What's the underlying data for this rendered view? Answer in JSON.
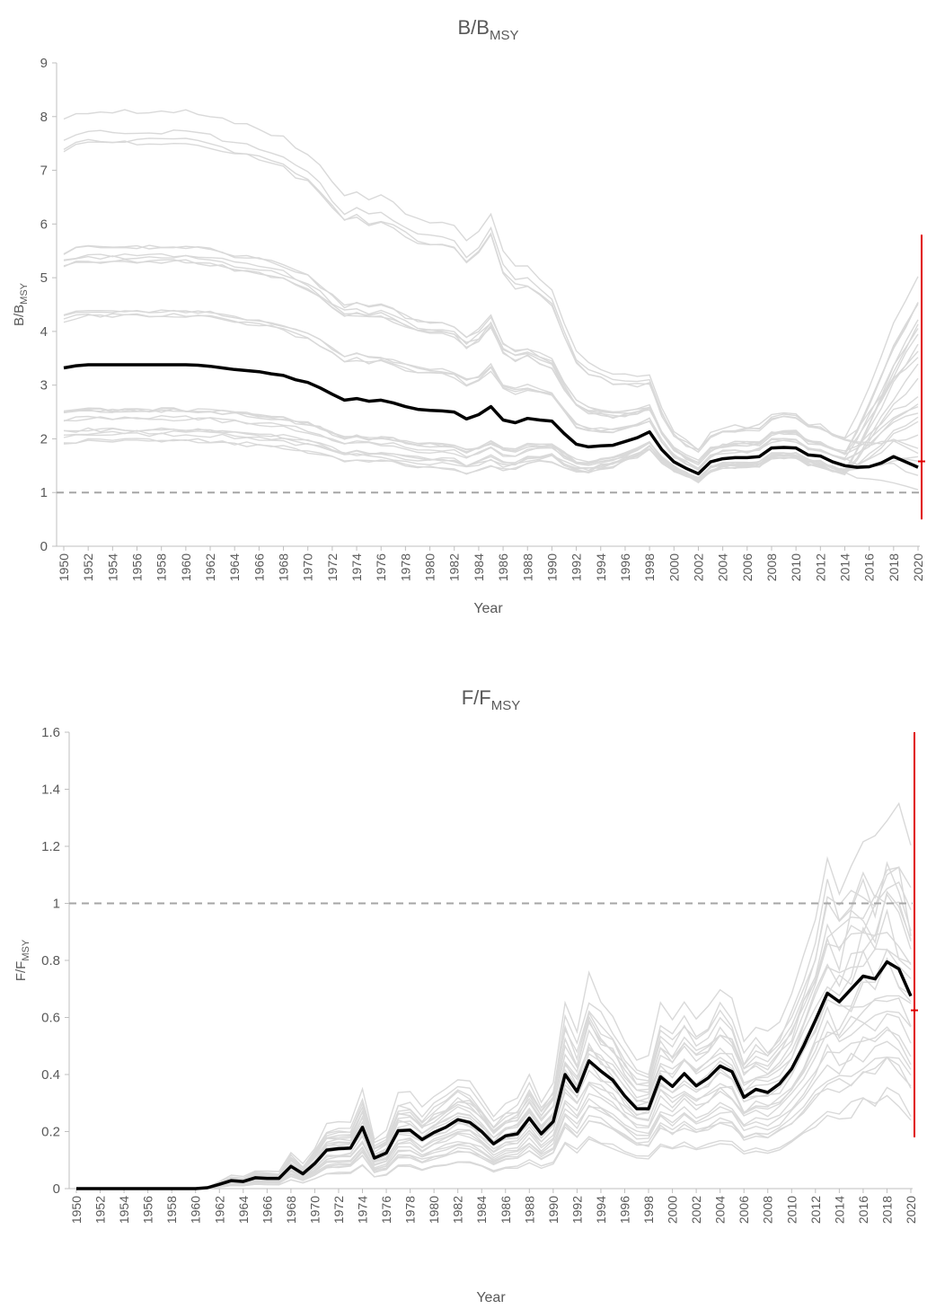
{
  "chart_data": [
    {
      "type": "line",
      "title": "B/B",
      "title_sub": "MSY",
      "ylabel": "B/B",
      "ylabel_sub": "MSY",
      "xlabel": "Year",
      "ylim": [
        0,
        9
      ],
      "yticks": [
        0,
        1,
        2,
        3,
        4,
        5,
        6,
        7,
        8,
        9
      ],
      "xlim": [
        1950,
        2020
      ],
      "xticks": [
        1950,
        1952,
        1954,
        1956,
        1958,
        1960,
        1962,
        1964,
        1966,
        1968,
        1970,
        1972,
        1974,
        1976,
        1978,
        1980,
        1982,
        1984,
        1986,
        1988,
        1990,
        1992,
        1994,
        1996,
        1998,
        2000,
        2002,
        2004,
        2006,
        2008,
        2010,
        2012,
        2014,
        2016,
        2018,
        2020
      ],
      "reference_line": {
        "y": 1,
        "style": "dashed",
        "color": "#a6a6a6"
      },
      "main_series": {
        "color": "#000000",
        "x": [
          1950,
          1951,
          1952,
          1953,
          1954,
          1955,
          1956,
          1957,
          1958,
          1959,
          1960,
          1961,
          1962,
          1963,
          1964,
          1965,
          1966,
          1967,
          1968,
          1969,
          1970,
          1971,
          1972,
          1973,
          1974,
          1975,
          1976,
          1977,
          1978,
          1979,
          1980,
          1981,
          1982,
          1983,
          1984,
          1985,
          1986,
          1987,
          1988,
          1989,
          1990,
          1991,
          1992,
          1993,
          1994,
          1995,
          1996,
          1997,
          1998,
          1999,
          2000,
          2001,
          2002,
          2003,
          2004,
          2005,
          2006,
          2007,
          2008,
          2009,
          2010,
          2011,
          2012,
          2013,
          2014,
          2015,
          2016,
          2017,
          2018,
          2019,
          2020
        ],
        "y": [
          3.32,
          3.36,
          3.38,
          3.38,
          3.38,
          3.38,
          3.38,
          3.38,
          3.38,
          3.38,
          3.38,
          3.37,
          3.35,
          3.32,
          3.29,
          3.27,
          3.25,
          3.21,
          3.18,
          3.1,
          3.05,
          2.95,
          2.83,
          2.72,
          2.75,
          2.7,
          2.72,
          2.67,
          2.6,
          2.55,
          2.53,
          2.52,
          2.5,
          2.37,
          2.45,
          2.6,
          2.35,
          2.3,
          2.38,
          2.35,
          2.33,
          2.1,
          1.9,
          1.85,
          1.87,
          1.88,
          1.95,
          2.02,
          2.13,
          1.8,
          1.57,
          1.45,
          1.35,
          1.57,
          1.63,
          1.65,
          1.65,
          1.67,
          1.83,
          1.84,
          1.83,
          1.7,
          1.68,
          1.57,
          1.5,
          1.47,
          1.48,
          1.55,
          1.67,
          1.57,
          1.47
        ]
      },
      "uncertainty": {
        "x": 2020,
        "low": 0.5,
        "high": 5.8,
        "point": 1.58,
        "color": "#e00000"
      }
    },
    {
      "type": "line",
      "title": "F/F",
      "title_sub": "MSY",
      "ylabel": "F/F",
      "ylabel_sub": "MSY",
      "xlabel": "Year",
      "ylim": [
        0,
        1.6
      ],
      "yticks": [
        0,
        0.2,
        0.4,
        0.6,
        0.8,
        1,
        1.2,
        1.4,
        1.6
      ],
      "ytick_labels": [
        "0",
        "0.2",
        "0.4",
        "0.6",
        "0.8",
        "1",
        "1.2",
        "1.4",
        "1.6"
      ],
      "xlim": [
        1950,
        2020
      ],
      "xticks": [
        1950,
        1952,
        1954,
        1956,
        1958,
        1960,
        1962,
        1964,
        1966,
        1968,
        1970,
        1972,
        1974,
        1976,
        1978,
        1980,
        1982,
        1984,
        1986,
        1988,
        1990,
        1992,
        1994,
        1996,
        1998,
        2000,
        2002,
        2004,
        2006,
        2008,
        2010,
        2012,
        2014,
        2016,
        2018,
        2020
      ],
      "reference_line": {
        "y": 1,
        "style": "dashed",
        "color": "#a6a6a6"
      },
      "main_series": {
        "color": "#000000",
        "x": [
          1950,
          1951,
          1952,
          1953,
          1954,
          1955,
          1956,
          1957,
          1958,
          1959,
          1960,
          1961,
          1962,
          1963,
          1964,
          1965,
          1966,
          1967,
          1968,
          1969,
          1970,
          1971,
          1972,
          1973,
          1974,
          1975,
          1976,
          1977,
          1978,
          1979,
          1980,
          1981,
          1982,
          1983,
          1984,
          1985,
          1986,
          1987,
          1988,
          1989,
          1990,
          1991,
          1992,
          1993,
          1994,
          1995,
          1996,
          1997,
          1998,
          1999,
          2000,
          2001,
          2002,
          2003,
          2004,
          2005,
          2006,
          2007,
          2008,
          2009,
          2010,
          2011,
          2012,
          2013,
          2014,
          2015,
          2016,
          2017,
          2018,
          2019,
          2020
        ],
        "y": [
          0,
          0,
          0,
          0,
          0,
          0,
          0,
          0,
          0,
          0,
          0,
          0.003,
          0.015,
          0.028,
          0.025,
          0.038,
          0.036,
          0.036,
          0.078,
          0.052,
          0.088,
          0.135,
          0.14,
          0.142,
          0.215,
          0.107,
          0.125,
          0.203,
          0.205,
          0.172,
          0.197,
          0.215,
          0.242,
          0.232,
          0.2,
          0.157,
          0.185,
          0.192,
          0.247,
          0.192,
          0.235,
          0.4,
          0.34,
          0.448,
          0.412,
          0.38,
          0.325,
          0.28,
          0.28,
          0.392,
          0.358,
          0.403,
          0.36,
          0.388,
          0.43,
          0.41,
          0.32,
          0.348,
          0.337,
          0.368,
          0.42,
          0.5,
          0.59,
          0.685,
          0.655,
          0.7,
          0.745,
          0.735,
          0.795,
          0.77,
          0.675
        ]
      },
      "uncertainty": {
        "x": 2020,
        "low": 0.18,
        "high": 1.6,
        "point": 0.625,
        "color": "#e00000"
      }
    }
  ],
  "background_series_color": "#d9d9d9"
}
